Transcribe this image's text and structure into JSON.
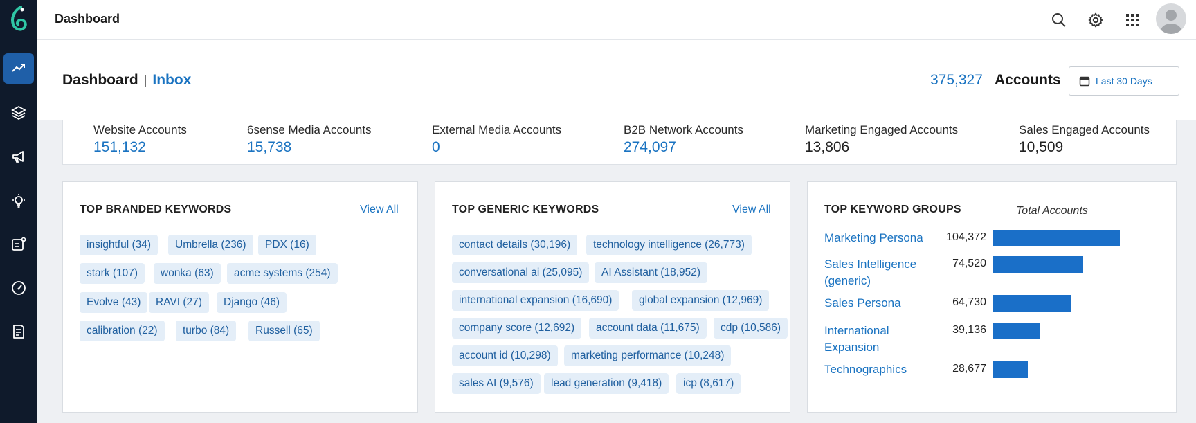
{
  "topbar": {
    "title": "Dashboard"
  },
  "header": {
    "crumb_main": "Dashboard",
    "crumb_separator": "|",
    "crumb_link": "Inbox",
    "accounts_count": "375,327",
    "accounts_label": "Accounts",
    "date_range": "Last 30 Days"
  },
  "stats": [
    {
      "label": "Website Accounts",
      "value": "151,132"
    },
    {
      "label": "6sense Media Accounts",
      "value": "15,738"
    },
    {
      "label": "External Media Accounts",
      "value": "0"
    },
    {
      "label": "B2B Network Accounts",
      "value": "274,097"
    },
    {
      "label": "Marketing Engaged Accounts",
      "value": "13,806"
    },
    {
      "label": "Sales Engaged Accounts",
      "value": "10,509"
    }
  ],
  "branded": {
    "title": "TOP BRANDED KEYWORDS",
    "view_all": "View All",
    "chips": [
      "insightful (34)",
      "Umbrella (236)",
      "PDX (16)",
      "stark (107)",
      "wonka (63)",
      "acme systems (254)",
      "Evolve (43)",
      "RAVI (27)",
      "Django (46)",
      "calibration (22)",
      "turbo (84)",
      "Russell (65)"
    ]
  },
  "generic": {
    "title": "TOP GENERIC KEYWORDS",
    "view_all": "View All",
    "chips": [
      "contact details (30,196)",
      "technology intelligence (26,773)",
      "conversational ai (25,095)",
      "AI Assistant (18,952)",
      "international expansion (16,690)",
      "global expansion (12,969)",
      "company score (12,692)",
      "account data (11,675)",
      "cdp (10,586)",
      "account id (10,298)",
      "marketing performance (10,248)",
      "sales AI (9,576)",
      "lead generation (9,418)",
      "icp (8,617)"
    ]
  },
  "groups": {
    "title": "TOP KEYWORD GROUPS",
    "subtitle": "Total Accounts",
    "rows": [
      {
        "label": "Marketing Persona",
        "value": "104,372",
        "amount": 104372
      },
      {
        "label": "Sales Intelligence (generic)",
        "value": "74,520",
        "amount": 74520
      },
      {
        "label": "Sales Persona",
        "value": "64,730",
        "amount": 64730
      },
      {
        "label": "International Expansion",
        "value": "39,136",
        "amount": 39136
      },
      {
        "label": "Technographics",
        "value": "28,677",
        "amount": 28677
      }
    ],
    "bar_color": "#1a6fc8"
  },
  "icons": {
    "sidebar": [
      "trend-icon",
      "layers-icon",
      "megaphone-icon",
      "lightbulb-icon",
      "report-icon",
      "gauge-icon",
      "document-icon"
    ],
    "top": [
      "search-icon",
      "gear-icon",
      "apps-grid-icon",
      "avatar"
    ]
  },
  "colors": {
    "accent": "#1a73c1",
    "sidebar": "#0f1a2b",
    "chip_bg": "#e4eef8"
  }
}
